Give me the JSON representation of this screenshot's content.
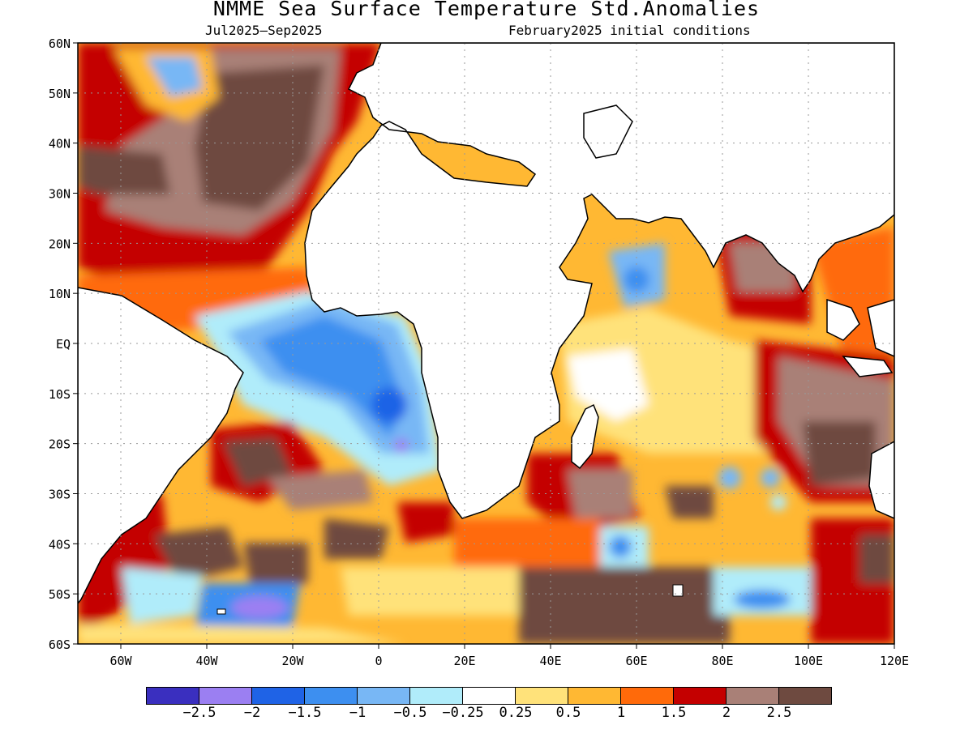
{
  "title": "NMME Sea Surface Temperature Std.Anomalies",
  "subtitle_left": "Jul2025–Sep2025",
  "subtitle_right": "February2025 initial conditions",
  "lat_labels": [
    "60N",
    "50N",
    "40N",
    "30N",
    "20N",
    "10N",
    "EQ",
    "10S",
    "20S",
    "30S",
    "40S",
    "50S",
    "60S"
  ],
  "lon_labels": [
    "60W",
    "40W",
    "20W",
    "0",
    "20E",
    "40E",
    "60E",
    "80E",
    "100E",
    "120E"
  ],
  "colorbar": {
    "colors": [
      "#3a2fbf",
      "#9b7ff2",
      "#1f63e6",
      "#3d8ff0",
      "#78b7f5",
      "#b0ecfa",
      "#ffffff",
      "#ffe27a",
      "#ffb833",
      "#ff6a0a",
      "#c40000",
      "#a98077",
      "#6e4a40"
    ],
    "labels": [
      "−2.5",
      "−2",
      "−1.5",
      "−1",
      "−0.5",
      "−0.25",
      "0.25",
      "0.5",
      "1",
      "1.5",
      "2",
      "2.5"
    ]
  },
  "map_extent": {
    "lon": [
      -70,
      120
    ],
    "lat": [
      -60,
      60
    ]
  }
}
